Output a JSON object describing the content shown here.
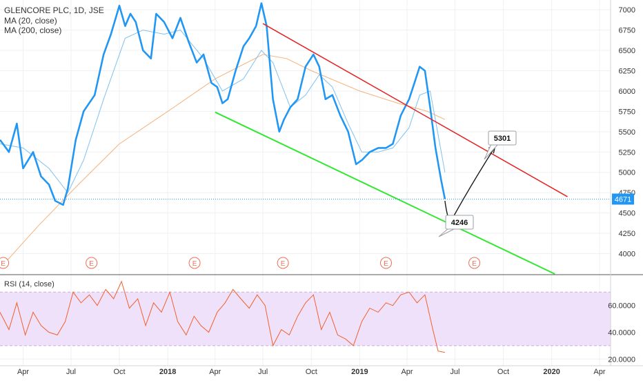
{
  "header": {
    "symbol": "GLENCORE PLC, 1D, JSE",
    "ma20": "MA (20, close)",
    "ma200": "MA (200, close)"
  },
  "rsi_label": "RSI (14, close)",
  "earnings_marker": "E",
  "last_price_label": "4671",
  "callouts": {
    "target": "5301",
    "low": "4246"
  },
  "colors": {
    "price": "#2196f3",
    "ma20": "#7fc1f0",
    "ma200": "#f5b27a",
    "rsi": "#f0602a",
    "rsi_band": "#f0e1fb",
    "resistance": "#e52222",
    "support": "#31e831",
    "earnings": "#f06e53"
  },
  "chart_data": {
    "type": "line",
    "title": "GLENCORE PLC, 1D, JSE",
    "price_axis": {
      "ticks": [
        4000,
        4250,
        4500,
        4750,
        5000,
        5250,
        5500,
        5750,
        6000,
        6250,
        6500,
        6750,
        7000
      ],
      "range": [
        3750,
        7120
      ],
      "last_price": 4671
    },
    "time_axis": {
      "labels": [
        "Apr",
        "Jul",
        "Oct",
        "2018",
        "Apr",
        "Jul",
        "Oct",
        "2019",
        "Apr",
        "Jul",
        "Oct",
        "2020",
        "Apr"
      ],
      "dates": [
        "2017-04",
        "2017-07",
        "2017-10",
        "2018-01",
        "2018-04",
        "2018-07",
        "2018-10",
        "2019-01",
        "2019-04",
        "2019-07",
        "2019-10",
        "2020-01",
        "2020-04"
      ],
      "range": [
        "2017-02-16",
        "2020-04-22"
      ]
    },
    "series": [
      {
        "name": "GLENCORE PLC",
        "dates": [
          "2017-02-16",
          "2017-03-05",
          "2017-03-20",
          "2017-04-01",
          "2017-04-20",
          "2017-05-05",
          "2017-05-20",
          "2017-06-01",
          "2017-06-16",
          "2017-06-25",
          "2017-07-10",
          "2017-07-25",
          "2017-08-15",
          "2017-09-01",
          "2017-09-15",
          "2017-10-01",
          "2017-10-12",
          "2017-10-22",
          "2017-11-01",
          "2017-11-15",
          "2017-11-30",
          "2017-12-10",
          "2017-12-25",
          "2018-01-10",
          "2018-01-25",
          "2018-02-10",
          "2018-02-25",
          "2018-03-10",
          "2018-03-25",
          "2018-04-05",
          "2018-04-15",
          "2018-04-25",
          "2018-05-10",
          "2018-05-25",
          "2018-06-05",
          "2018-06-18",
          "2018-06-28",
          "2018-07-08",
          "2018-07-20",
          "2018-08-01",
          "2018-08-10",
          "2018-08-22",
          "2018-09-05",
          "2018-09-20",
          "2018-10-05",
          "2018-10-16",
          "2018-10-28",
          "2018-11-10",
          "2018-11-25",
          "2018-12-10",
          "2018-12-25",
          "2019-01-05",
          "2019-01-20",
          "2019-02-05",
          "2019-02-20",
          "2019-03-05",
          "2019-03-20",
          "2019-04-05",
          "2019-04-15",
          "2019-04-25",
          "2019-05-05",
          "2019-05-15",
          "2019-05-25",
          "2019-06-05",
          "2019-06-12"
        ],
        "values": [
          5400,
          5250,
          5600,
          5050,
          5250,
          4950,
          4850,
          4650,
          4600,
          4800,
          5400,
          5750,
          5950,
          6450,
          6700,
          7050,
          6800,
          6950,
          6850,
          6500,
          6400,
          6950,
          6850,
          6650,
          6900,
          6600,
          6350,
          6450,
          6100,
          6050,
          5850,
          5900,
          6250,
          6550,
          6650,
          6800,
          7080,
          6800,
          5900,
          5500,
          5650,
          5800,
          5900,
          6300,
          6450,
          6300,
          5900,
          5950,
          5700,
          5500,
          5100,
          5150,
          5250,
          5300,
          5300,
          5350,
          5700,
          5900,
          6100,
          6300,
          6250,
          5800,
          5300,
          4900,
          4671
        ]
      },
      {
        "name": "MA (20, close)",
        "dates": [
          "2017-02-16",
          "2017-04-01",
          "2017-05-20",
          "2017-06-25",
          "2017-07-25",
          "2017-09-01",
          "2017-10-12",
          "2017-11-15",
          "2017-12-25",
          "2018-01-25",
          "2018-03-10",
          "2018-04-15",
          "2018-05-25",
          "2018-06-28",
          "2018-07-20",
          "2018-08-22",
          "2018-09-20",
          "2018-10-16",
          "2018-11-10",
          "2018-12-10",
          "2019-01-05",
          "2019-02-05",
          "2019-03-05",
          "2019-04-05",
          "2019-04-25",
          "2019-05-15",
          "2019-06-12"
        ],
        "values": [
          5350,
          5300,
          5050,
          4750,
          5150,
          5900,
          6650,
          6750,
          6700,
          6750,
          6400,
          6000,
          6150,
          6500,
          6350,
          5800,
          5950,
          6200,
          6050,
          5600,
          5250,
          5250,
          5300,
          5550,
          5950,
          6000,
          5000
        ]
      },
      {
        "name": "MA (200, close)",
        "dates": [
          "2017-02-16",
          "2017-05-01",
          "2017-07-15",
          "2017-10-01",
          "2018-01-01",
          "2018-04-01",
          "2018-07-01",
          "2018-08-15",
          "2018-10-01",
          "2019-01-01",
          "2019-03-15",
          "2019-05-10",
          "2019-06-12"
        ],
        "values": [
          3820,
          4350,
          4850,
          5350,
          5750,
          6150,
          6450,
          6400,
          6250,
          6000,
          5850,
          5750,
          5650
        ]
      }
    ],
    "trendlines": [
      {
        "name": "resistance",
        "from": [
          "2018-07-01",
          6830
        ],
        "to": [
          "2020-01-31",
          4700
        ]
      },
      {
        "name": "support",
        "from": [
          "2018-04-01",
          5740
        ],
        "to": [
          "2020-01-07",
          3750
        ]
      }
    ],
    "forecast_path": {
      "dates": [
        "2019-06-12",
        "2019-06-19",
        "2019-06-26",
        "2019-08-01",
        "2019-09-15"
      ],
      "values": [
        4650,
        4330,
        4430,
        4850,
        5310
      ]
    },
    "annotations": [
      {
        "text": "5301",
        "value": 5301
      },
      {
        "text": "4246",
        "value": 4246
      }
    ],
    "earnings_dates": [
      "2017-02-22",
      "2017-08-09",
      "2018-02-21",
      "2018-08-08",
      "2019-02-20",
      "2019-08-07"
    ],
    "rsi": {
      "name": "RSI (14, close)",
      "ticks": [
        20,
        40,
        60
      ],
      "range": [
        15,
        82
      ],
      "band": [
        30,
        70
      ],
      "dates": [
        "2017-02-16",
        "2017-03-05",
        "2017-03-20",
        "2017-04-05",
        "2017-04-20",
        "2017-05-05",
        "2017-05-20",
        "2017-06-05",
        "2017-06-20",
        "2017-07-05",
        "2017-07-20",
        "2017-08-05",
        "2017-08-20",
        "2017-09-05",
        "2017-09-20",
        "2017-10-05",
        "2017-10-20",
        "2017-11-05",
        "2017-11-20",
        "2017-12-05",
        "2017-12-20",
        "2018-01-05",
        "2018-01-20",
        "2018-02-05",
        "2018-02-20",
        "2018-03-05",
        "2018-03-20",
        "2018-04-05",
        "2018-04-20",
        "2018-05-05",
        "2018-05-20",
        "2018-06-05",
        "2018-06-20",
        "2018-07-05",
        "2018-07-20",
        "2018-08-05",
        "2018-08-20",
        "2018-09-05",
        "2018-09-20",
        "2018-10-05",
        "2018-10-20",
        "2018-11-05",
        "2018-11-20",
        "2018-12-05",
        "2018-12-20",
        "2019-01-05",
        "2019-01-20",
        "2019-02-05",
        "2019-02-20",
        "2019-03-05",
        "2019-03-20",
        "2019-04-05",
        "2019-04-20",
        "2019-05-05",
        "2019-05-20",
        "2019-05-30",
        "2019-06-12"
      ],
      "values": [
        55,
        42,
        62,
        38,
        55,
        45,
        40,
        38,
        48,
        70,
        62,
        68,
        60,
        72,
        65,
        78,
        58,
        65,
        45,
        62,
        55,
        70,
        48,
        38,
        52,
        45,
        40,
        55,
        62,
        72,
        65,
        58,
        68,
        60,
        30,
        42,
        38,
        52,
        62,
        68,
        42,
        55,
        38,
        35,
        30,
        48,
        58,
        55,
        62,
        60,
        68,
        70,
        62,
        68,
        42,
        26,
        25
      ]
    }
  }
}
